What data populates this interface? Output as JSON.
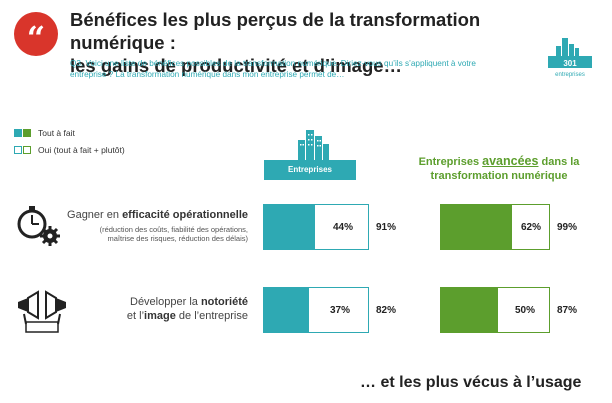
{
  "header": {
    "icon": "quote-icon",
    "title_line1": "Bénéfices les plus perçus de la transformation numérique :",
    "title_line2": "les gains de productivité et d’image…",
    "question_line1": "Q3. Voici une liste de bénéfices possibles de la transformation numérique. Diriez-vous qu’ils s’appliquent à votre",
    "question_line2": "entreprise ? La transformation numérique dans mon entreprise permet de…"
  },
  "logo": {
    "number": "301",
    "label": "entreprises"
  },
  "legend": {
    "filled": "Tout à fait",
    "outline": "Oui (tout à fait + plutôt)"
  },
  "groups": {
    "entreprises": "Entreprises",
    "avancees_prefix": "Entreprises ",
    "avancees_em": "avancées",
    "avancees_suffix": " dans la",
    "avancees_line2": "transformation numérique"
  },
  "rows": [
    {
      "main_prefix": "Gagner en ",
      "main_bold": "efficacité opérationnelle",
      "sub1": "(réduction des coûts, fiabilité des opérations,",
      "sub2": "maîtrise des risques, réduction des délais)",
      "icon": "stopwatch-gear-icon"
    },
    {
      "main_line1_prefix": "Développer la ",
      "main_line1_bold": "notoriété",
      "main_line2_prefix": "et l’",
      "main_line2_bold": "image",
      "main_line2_suffix": " de l’entreprise",
      "icon": "megaphone-icon"
    }
  ],
  "chart_data": {
    "type": "bar",
    "categories": [
      "Gagner en efficacité opérationnelle",
      "Développer la notoriété et l’image de l’entreprise"
    ],
    "series": [
      {
        "name": "Entreprises",
        "tout_a_fait": [
          44,
          37
        ],
        "oui_total": [
          91,
          82
        ],
        "color": "#2ea9b3"
      },
      {
        "name": "Entreprises avancées dans la transformation numérique",
        "tout_a_fait": [
          62,
          50
        ],
        "oui_total": [
          99,
          87
        ],
        "color": "#5c9e2d"
      }
    ],
    "labels": {
      "entreprises": {
        "row1_inner": "44%",
        "row1_outer": "91%",
        "row2_inner": "37%",
        "row2_outer": "82%"
      },
      "avancees": {
        "row1_inner": "62%",
        "row1_outer": "99%",
        "row2_inner": "50%",
        "row2_outer": "87%"
      }
    }
  },
  "footer": "… et les plus vécus à l’usage"
}
